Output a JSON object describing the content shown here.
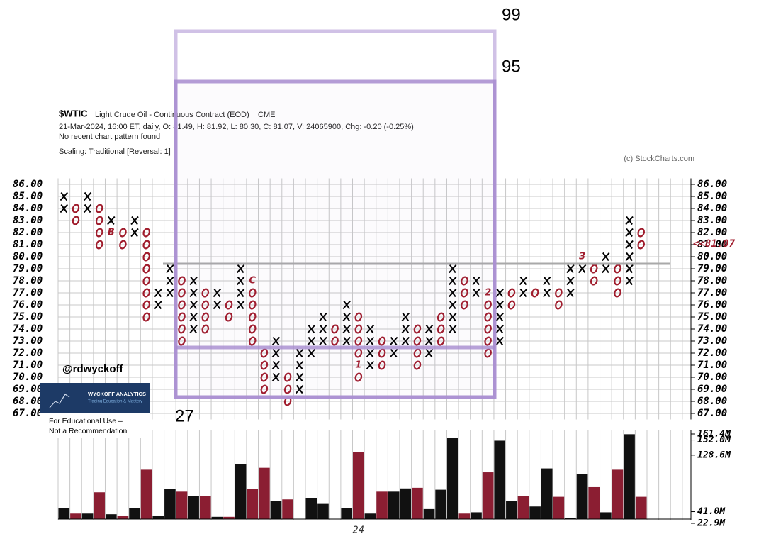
{
  "chart_data": {
    "type": "point_and_figure",
    "symbol": "$WTIC",
    "name": "Light Crude Oil - Continuous Contract (EOD)",
    "exchange": "CME",
    "info": "21-Mar-2024, 16:00 ET, daily, O: 81.49, H: 81.92, L: 80.30, C: 81.07, V: 24065900, Chg: -0.20 (-0.25%)",
    "pattern": "No recent chart pattern found",
    "scaling": "Scaling: Traditional [Reversal: 1]",
    "credit": "(c) StockCharts.com",
    "x_color": "#000000",
    "o_color": "#a01c2c",
    "marker_color": "#a01c2c",
    "ylim": [
      66.5,
      86.5
    ],
    "yticks": [
      {
        "value": 67,
        "label": "67.00"
      },
      {
        "value": 68,
        "label": "68.00"
      },
      {
        "value": 69,
        "label": "69.00"
      },
      {
        "value": 70,
        "label": "70.00"
      },
      {
        "value": 71,
        "label": "71.00"
      },
      {
        "value": 72,
        "label": "72.00"
      },
      {
        "value": 73,
        "label": "73.00"
      },
      {
        "value": 74,
        "label": "74.00"
      },
      {
        "value": 75,
        "label": "75.00"
      },
      {
        "value": 76,
        "label": "76.00"
      },
      {
        "value": 77,
        "label": "77.00"
      },
      {
        "value": 78,
        "label": "78.00"
      },
      {
        "value": 79,
        "label": "79.00"
      },
      {
        "value": 80,
        "label": "80.00"
      },
      {
        "value": 81,
        "label": "81.00"
      },
      {
        "value": 82,
        "label": "82.00"
      },
      {
        "value": 83,
        "label": "83.00"
      },
      {
        "value": 84,
        "label": "84.00"
      },
      {
        "value": 85,
        "label": "85.00"
      },
      {
        "value": 86,
        "label": "86.00"
      }
    ],
    "last_price": {
      "value": 81.07,
      "label": "<<81.07"
    },
    "columns": [
      {
        "kind": "X",
        "low": 84,
        "high": 85
      },
      {
        "kind": "O",
        "low": 83,
        "high": 84
      },
      {
        "kind": "X",
        "low": 84,
        "high": 85
      },
      {
        "kind": "O",
        "low": 81,
        "high": 84
      },
      {
        "kind": "X",
        "low": 82,
        "high": 83
      },
      {
        "kind": "O",
        "low": 81,
        "high": 82
      },
      {
        "kind": "X",
        "low": 82,
        "high": 83
      },
      {
        "kind": "O",
        "low": 75,
        "high": 82
      },
      {
        "kind": "X",
        "low": 76,
        "high": 77
      },
      {
        "kind": "X",
        "low": 77,
        "high": 79
      },
      {
        "kind": "O",
        "low": 73,
        "high": 78
      },
      {
        "kind": "X",
        "low": 74,
        "high": 78
      },
      {
        "kind": "O",
        "low": 74,
        "high": 77
      },
      {
        "kind": "X",
        "low": 76,
        "high": 77
      },
      {
        "kind": "O",
        "low": 75,
        "high": 76
      },
      {
        "kind": "X",
        "low": 76,
        "high": 79
      },
      {
        "kind": "O",
        "low": 73,
        "high": 78
      },
      {
        "kind": "O",
        "low": 69,
        "high": 72
      },
      {
        "kind": "X",
        "low": 70,
        "high": 73
      },
      {
        "kind": "O",
        "low": 68,
        "high": 70
      },
      {
        "kind": "X",
        "low": 69,
        "high": 72
      },
      {
        "kind": "X",
        "low": 72,
        "high": 74
      },
      {
        "kind": "X",
        "low": 73,
        "high": 75
      },
      {
        "kind": "O",
        "low": 73,
        "high": 74
      },
      {
        "kind": "X",
        "low": 73,
        "high": 76
      },
      {
        "kind": "O",
        "low": 70,
        "high": 75
      },
      {
        "kind": "X",
        "low": 71,
        "high": 74
      },
      {
        "kind": "O",
        "low": 71,
        "high": 73
      },
      {
        "kind": "X",
        "low": 72,
        "high": 73
      },
      {
        "kind": "X",
        "low": 73,
        "high": 75
      },
      {
        "kind": "O",
        "low": 71,
        "high": 74
      },
      {
        "kind": "X",
        "low": 72,
        "high": 74
      },
      {
        "kind": "O",
        "low": 73,
        "high": 75
      },
      {
        "kind": "X",
        "low": 74,
        "high": 79
      },
      {
        "kind": "O",
        "low": 76,
        "high": 78
      },
      {
        "kind": "X",
        "low": 77,
        "high": 78
      },
      {
        "kind": "O",
        "low": 72,
        "high": 77
      },
      {
        "kind": "X",
        "low": 73,
        "high": 77
      },
      {
        "kind": "O",
        "low": 76,
        "high": 77
      },
      {
        "kind": "X",
        "low": 77,
        "high": 78
      },
      {
        "kind": "O",
        "low": 77,
        "high": 77
      },
      {
        "kind": "X",
        "low": 77,
        "high": 78
      },
      {
        "kind": "O",
        "low": 76,
        "high": 77
      },
      {
        "kind": "X",
        "low": 77,
        "high": 79
      },
      {
        "kind": "X",
        "low": 79,
        "high": 80
      },
      {
        "kind": "O",
        "low": 78,
        "high": 79
      },
      {
        "kind": "X",
        "low": 79,
        "high": 80
      },
      {
        "kind": "O",
        "low": 77,
        "high": 79
      },
      {
        "kind": "X",
        "low": 78,
        "high": 83
      },
      {
        "kind": "O",
        "low": 81,
        "high": 82
      }
    ],
    "markers": [
      {
        "column": 4,
        "price": 82,
        "label": "B"
      },
      {
        "column": 16,
        "price": 78,
        "label": "C"
      },
      {
        "column": 25,
        "price": 71,
        "label": "1"
      },
      {
        "column": 36,
        "price": 77,
        "label": "2"
      },
      {
        "column": 44,
        "price": 80,
        "label": "3"
      }
    ],
    "categories": [
      null,
      null,
      null,
      null,
      null,
      null,
      null,
      null,
      null,
      null,
      null,
      null,
      null,
      null,
      null,
      null,
      null,
      null,
      null,
      null,
      null,
      null,
      null,
      null,
      null,
      "24",
      null,
      null,
      null,
      null,
      null,
      null,
      null,
      null,
      null,
      null,
      null,
      null,
      null,
      null,
      null,
      null,
      null,
      null,
      null,
      null,
      null,
      null,
      null,
      null
    ],
    "volume": {
      "palette": {
        "k": "#111111",
        "r": "#8b1e32"
      },
      "colors": [
        "k",
        "r",
        "k",
        "r",
        "k",
        "r",
        "k",
        "r",
        "k",
        "k",
        "r",
        "k",
        "r",
        "k",
        "r",
        "k",
        "r",
        "r",
        "k",
        "r",
        "k",
        "k",
        "k",
        "k",
        "k",
        "r",
        "k",
        "r",
        "k",
        "k",
        "r",
        "k",
        "k",
        "k",
        "r",
        "k",
        "r",
        "k",
        "k",
        "r",
        "k",
        "k",
        "r",
        "k",
        "k",
        "r",
        "k",
        "r",
        "k",
        "r"
      ],
      "values": [
        46,
        38,
        38,
        71,
        37,
        35,
        47,
        106,
        35,
        76,
        72,
        65,
        65,
        33,
        33,
        115,
        76,
        109,
        57,
        60,
        null,
        62,
        53,
        null,
        46,
        133,
        38,
        72,
        72,
        77,
        78,
        45,
        75,
        155,
        38,
        40,
        102,
        151,
        57,
        65,
        49,
        108,
        64,
        31,
        99,
        79,
        40,
        106,
        161,
        64
      ],
      "ylim": [
        22.9,
        161.4
      ],
      "yticks": [
        {
          "value": 161.4,
          "label": "161.4M"
        },
        {
          "value": 152.0,
          "label": "152.0M"
        },
        {
          "value": 128.6,
          "label": "128.6M"
        },
        {
          "value": 41.0,
          "label": "41.0M"
        },
        {
          "value": 22.9,
          "label": "22.9M"
        }
      ]
    },
    "annotations": [
      "99",
      "95",
      "27"
    ],
    "watermark": {
      "handle": "@rdwyckoff",
      "brand": "WYCKOFF ANALYTICS",
      "tagline": "Trading Education & Mastery",
      "disclaimer": [
        "For Educational Use –",
        "Not a Recommendation"
      ]
    }
  }
}
